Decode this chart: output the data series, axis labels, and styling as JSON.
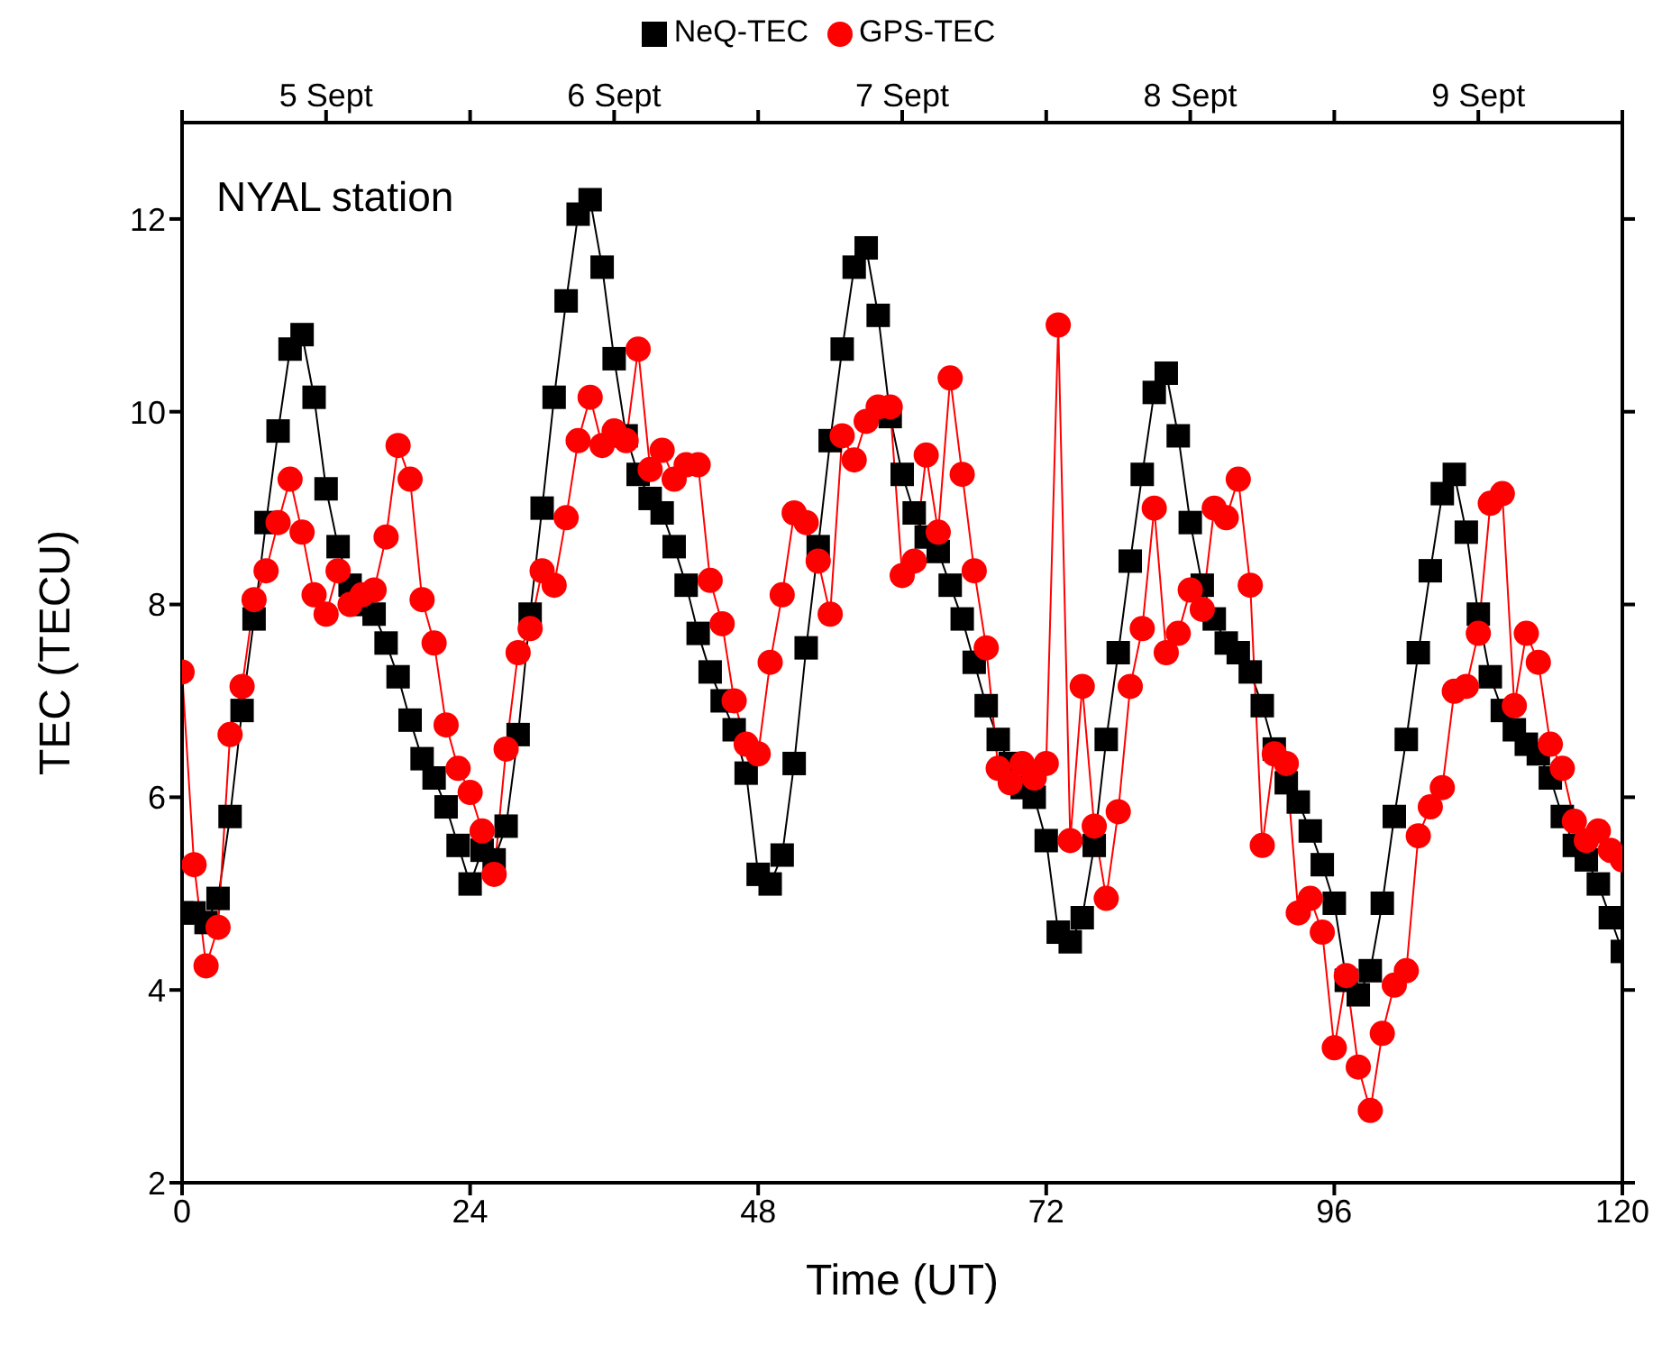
{
  "chart_data": {
    "type": "line",
    "xlabel": "Time (UT)",
    "ylabel": "TEC (TECU)",
    "annotations": [
      "NYAL station"
    ],
    "x": [
      0,
      1,
      2,
      3,
      4,
      5,
      6,
      7,
      8,
      9,
      10,
      11,
      12,
      13,
      14,
      15,
      16,
      17,
      18,
      19,
      20,
      21,
      22,
      23,
      24,
      25,
      26,
      27,
      28,
      29,
      30,
      31,
      32,
      33,
      34,
      35,
      36,
      37,
      38,
      39,
      40,
      41,
      42,
      43,
      44,
      45,
      46,
      47,
      48,
      49,
      50,
      51,
      52,
      53,
      54,
      55,
      56,
      57,
      58,
      59,
      60,
      61,
      62,
      63,
      64,
      65,
      66,
      67,
      68,
      69,
      70,
      71,
      72,
      73,
      74,
      75,
      76,
      77,
      78,
      79,
      80,
      81,
      82,
      83,
      84,
      85,
      86,
      87,
      88,
      89,
      90,
      91,
      92,
      93,
      94,
      95,
      96,
      97,
      98,
      99,
      100,
      101,
      102,
      103,
      104,
      105,
      106,
      107,
      108,
      109,
      110,
      111,
      112,
      113,
      114,
      115,
      116,
      117,
      118,
      119,
      120
    ],
    "series": [
      {
        "name": "NeQ-TEC",
        "color": "#000000",
        "marker": "square",
        "values": [
          4.8,
          4.8,
          4.7,
          4.95,
          5.8,
          6.9,
          7.85,
          8.85,
          9.8,
          10.65,
          10.8,
          10.15,
          9.2,
          8.6,
          8.2,
          8.0,
          7.9,
          7.6,
          7.25,
          6.8,
          6.4,
          6.2,
          5.9,
          5.5,
          5.1,
          5.45,
          5.35,
          5.7,
          6.65,
          7.9,
          9.0,
          10.15,
          11.15,
          12.05,
          12.2,
          11.5,
          10.55,
          9.75,
          9.35,
          9.1,
          8.95,
          8.6,
          8.2,
          7.7,
          7.3,
          7.0,
          6.7,
          6.25,
          5.2,
          5.1,
          5.4,
          6.35,
          7.55,
          8.6,
          9.7,
          10.65,
          11.5,
          11.7,
          11.0,
          9.95,
          9.35,
          8.95,
          8.7,
          8.55,
          8.2,
          7.85,
          7.4,
          6.95,
          6.6,
          6.35,
          6.1,
          6.0,
          5.55,
          4.6,
          4.5,
          4.75,
          5.5,
          6.6,
          7.5,
          8.45,
          9.35,
          10.2,
          10.4,
          9.75,
          8.85,
          8.2,
          7.85,
          7.6,
          7.5,
          7.3,
          6.95,
          6.5,
          6.15,
          5.95,
          5.65,
          5.3,
          4.9,
          4.1,
          3.95,
          4.2,
          4.9,
          5.8,
          6.6,
          7.5,
          8.35,
          9.15,
          9.35,
          8.75,
          7.9,
          7.25,
          6.9,
          6.7,
          6.55,
          6.45,
          6.2,
          5.8,
          5.5,
          5.35,
          5.1,
          4.75,
          4.4
        ]
      },
      {
        "name": "GPS-TEC",
        "color": "#ff0000",
        "marker": "circle",
        "values": [
          7.3,
          5.3,
          4.25,
          4.65,
          6.65,
          7.15,
          8.05,
          8.35,
          8.85,
          9.3,
          8.75,
          8.1,
          7.9,
          8.35,
          8.0,
          8.1,
          8.15,
          8.7,
          9.65,
          9.3,
          8.05,
          7.6,
          6.75,
          6.3,
          6.05,
          5.65,
          5.2,
          6.5,
          7.5,
          7.75,
          8.35,
          8.2,
          8.9,
          9.7,
          10.15,
          9.65,
          9.8,
          9.7,
          10.65,
          9.4,
          9.6,
          9.3,
          9.45,
          9.45,
          8.25,
          7.8,
          7.0,
          6.55,
          6.45,
          7.4,
          8.1,
          8.95,
          8.85,
          8.45,
          7.9,
          9.75,
          9.5,
          9.9,
          10.05,
          10.05,
          8.3,
          8.45,
          9.55,
          8.75,
          10.35,
          9.35,
          8.35,
          7.55,
          6.3,
          6.15,
          6.35,
          6.2,
          6.35,
          10.9,
          5.55,
          7.15,
          5.7,
          4.95,
          5.85,
          7.15,
          7.75,
          9.0,
          7.5,
          7.7,
          8.15,
          7.95,
          9.0,
          8.9,
          9.3,
          8.2,
          5.5,
          6.45,
          6.35,
          4.8,
          4.95,
          4.6,
          3.4,
          4.15,
          3.2,
          2.75,
          3.55,
          4.05,
          4.2,
          5.6,
          5.9,
          6.1,
          7.1,
          7.15,
          7.7,
          9.05,
          9.15,
          6.95,
          7.7,
          7.4,
          6.55,
          6.3,
          5.75,
          5.55,
          5.65,
          5.45,
          5.35
        ]
      }
    ],
    "line_style": "solid",
    "xlim": [
      0,
      120
    ],
    "xticks": [
      0,
      24,
      48,
      72,
      96,
      120
    ],
    "x2lim": [
      "--09-05",
      "--09-10"
    ],
    "x2ticks": [
      {
        "value": "--09-05",
        "label": null
      },
      {
        "value": "--09-05T12:00",
        "label": "5 Sept"
      },
      {
        "value": "--09-06",
        "label": null
      },
      {
        "value": "--09-06T12:00",
        "label": "6 Sept"
      },
      {
        "value": "--09-07",
        "label": null
      },
      {
        "value": "--09-07T12:00",
        "label": "7 Sept"
      },
      {
        "value": "--09-08",
        "label": null
      },
      {
        "value": "--09-08T12:00",
        "label": "8 Sept"
      },
      {
        "value": "--09-09",
        "label": null
      },
      {
        "value": "--09-09T12:00",
        "label": "9 Sept"
      },
      {
        "value": "--09-10",
        "label": null
      }
    ],
    "ylim": [
      2,
      13
    ],
    "yticks": [
      2,
      4,
      6,
      8,
      10,
      12
    ],
    "legend": "top"
  }
}
